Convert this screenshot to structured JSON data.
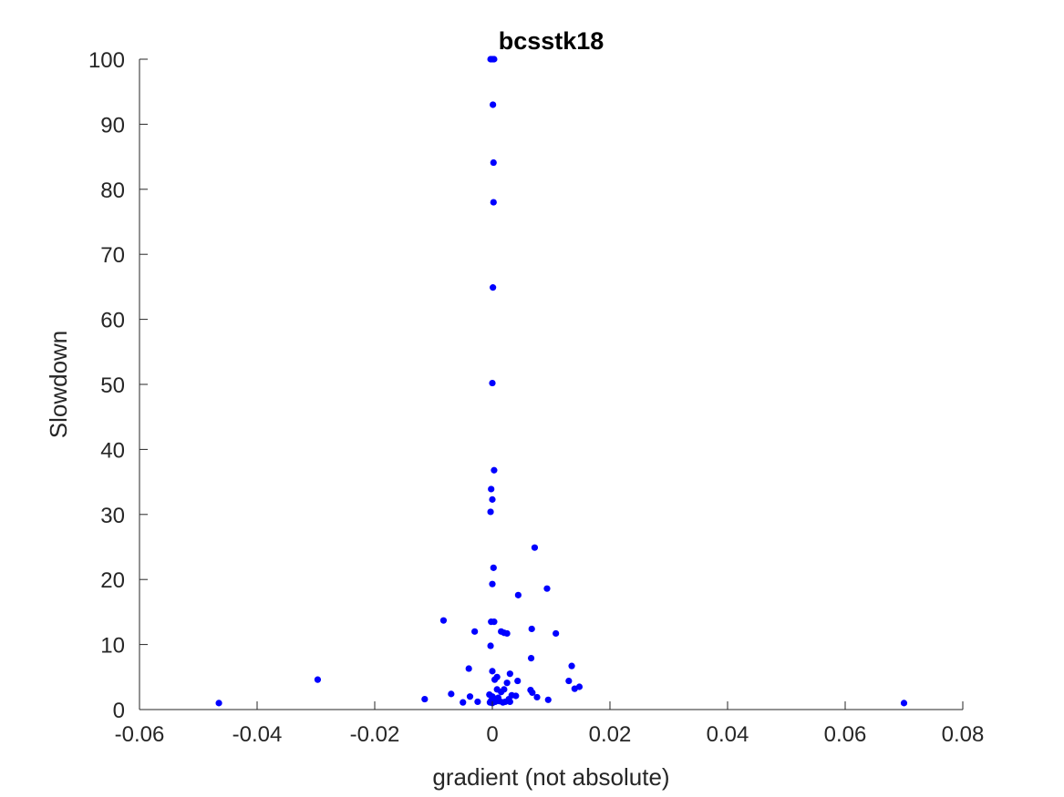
{
  "chart_data": {
    "type": "scatter",
    "title": "bcsstk18",
    "xlabel": "gradient (not absolute)",
    "ylabel": "Slowdown",
    "xlim": [
      -0.06,
      0.08
    ],
    "ylim": [
      0,
      100
    ],
    "xticks": [
      -0.06,
      -0.04,
      -0.02,
      0,
      0.02,
      0.04,
      0.06,
      0.08
    ],
    "xtick_labels": [
      "-0.06",
      "-0.04",
      "-0.02",
      "0",
      "0.02",
      "0.04",
      "0.06",
      "0.08"
    ],
    "yticks": [
      0,
      10,
      20,
      30,
      40,
      50,
      60,
      70,
      80,
      90,
      100
    ],
    "ytick_labels": [
      "0",
      "10",
      "20",
      "30",
      "40",
      "50",
      "60",
      "70",
      "80",
      "90",
      "100"
    ],
    "grid": false,
    "marker_color": "#0000ff",
    "axis_color": "#262626",
    "series": [
      {
        "name": "bcsstk18",
        "points": [
          [
            -0.0465,
            1.0
          ],
          [
            -0.0297,
            4.6
          ],
          [
            0.07,
            1.0
          ],
          [
            -0.0083,
            13.7
          ],
          [
            -0.0115,
            1.6
          ],
          [
            -0.007,
            2.4
          ],
          [
            -0.005,
            1.1
          ],
          [
            -0.004,
            6.3
          ],
          [
            -0.0038,
            2.0
          ],
          [
            -0.003,
            12.0
          ],
          [
            -0.0025,
            1.2
          ],
          [
            -0.0003,
            100
          ],
          [
            0.0,
            100
          ],
          [
            0.0003,
            100
          ],
          [
            0.0001,
            93.0
          ],
          [
            0.0002,
            84.1
          ],
          [
            0.0002,
            78.0
          ],
          [
            0.0001,
            64.9
          ],
          [
            0.0,
            50.2
          ],
          [
            0.0003,
            36.8
          ],
          [
            -0.0002,
            33.9
          ],
          [
            0.0,
            32.3
          ],
          [
            -0.0003,
            30.4
          ],
          [
            0.0002,
            21.8
          ],
          [
            0.0,
            19.3
          ],
          [
            -0.0002,
            13.5
          ],
          [
            0.0003,
            13.5
          ],
          [
            -0.0003,
            9.8
          ],
          [
            0.0,
            5.9
          ],
          [
            0.0008,
            5.0
          ],
          [
            0.0004,
            4.6
          ],
          [
            0.0008,
            3.1
          ],
          [
            -0.0005,
            2.3
          ],
          [
            0.0,
            2.0
          ],
          [
            0.0003,
            1.7
          ],
          [
            -0.0002,
            1.4
          ],
          [
            0.0005,
            1.2
          ],
          [
            0.0,
            1.0
          ],
          [
            -0.0004,
            1.1
          ],
          [
            0.001,
            1.8
          ],
          [
            0.0012,
            1.3
          ],
          [
            0.0015,
            2.7
          ],
          [
            0.0018,
            1.1
          ],
          [
            0.002,
            3.1
          ],
          [
            0.0022,
            1.2
          ],
          [
            0.0025,
            4.1
          ],
          [
            0.0028,
            1.6
          ],
          [
            0.003,
            5.5
          ],
          [
            0.003,
            1.2
          ],
          [
            0.0033,
            2.2
          ],
          [
            0.004,
            2.1
          ],
          [
            0.0043,
            4.4
          ],
          [
            0.0015,
            12.0
          ],
          [
            0.0025,
            11.7
          ],
          [
            0.002,
            11.8
          ],
          [
            0.0044,
            17.6
          ],
          [
            0.0067,
            12.4
          ],
          [
            0.0066,
            7.9
          ],
          [
            0.0065,
            3.0
          ],
          [
            0.0068,
            2.6
          ],
          [
            0.0072,
            24.9
          ],
          [
            0.0076,
            1.9
          ],
          [
            0.0093,
            18.6
          ],
          [
            0.0095,
            1.5
          ],
          [
            0.0108,
            11.7
          ],
          [
            0.013,
            4.4
          ],
          [
            0.0135,
            6.7
          ],
          [
            0.014,
            3.2
          ],
          [
            0.0148,
            3.5
          ]
        ]
      }
    ]
  }
}
